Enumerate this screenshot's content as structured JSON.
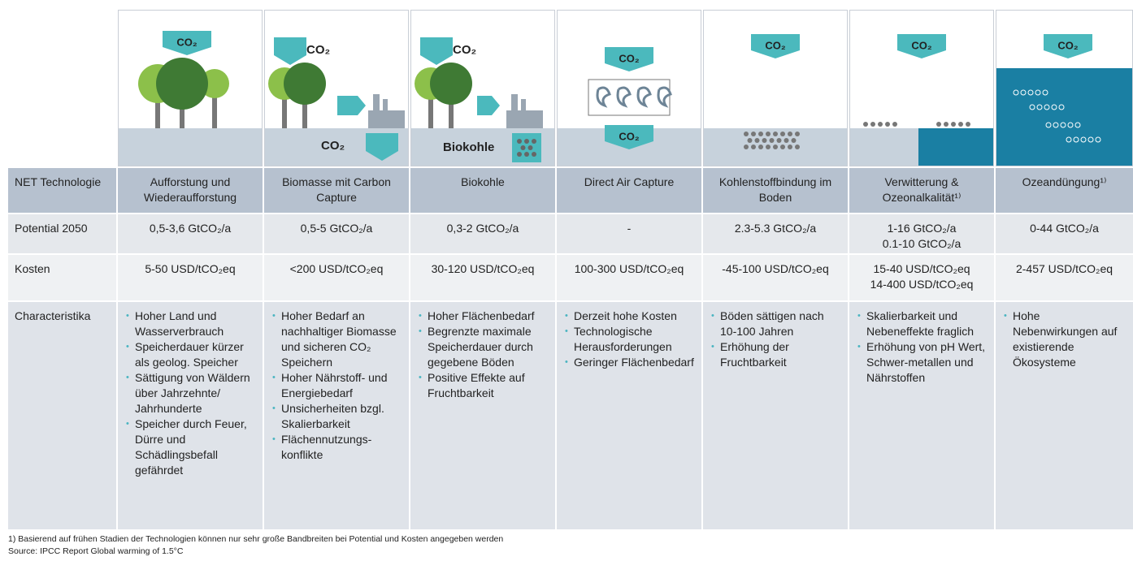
{
  "illustration_labels": {
    "co2": "CO₂",
    "biokohle": "Biokohle"
  },
  "table": {
    "header": [
      "NET Technologie",
      "Aufforstung und Wiederaufforstung",
      "Biomasse mit Carbon Capture",
      "Biokohle",
      "Direct Air Capture",
      "Kohlenstoffbindung im Boden",
      "Verwitterung & Ozeonalkalität¹⁾",
      "Ozeandüngung¹⁾"
    ],
    "rows": [
      [
        "Potential 2050",
        "0,5-3,6 GtCO₂/a",
        "0,5-5 GtCO₂/a",
        "0,3-2 GtCO₂/a",
        "-",
        "2.3-5.3 GtCO₂/a",
        "1-16 GtCO₂/a\n0.1-10 GtCO₂/a",
        "0-44 GtCO₂/a"
      ],
      [
        "Kosten",
        "5-50 USD/tCO₂eq",
        "<200 USD/tCO₂eq",
        "30-120 USD/tCO₂eq",
        "100-300 USD/tCO₂eq",
        "-45-100 USD/tCO₂eq",
        "15-40 USD/tCO₂eq\n14-400 USD/tCO₂eq",
        "2-457 USD/tCO₂eq"
      ],
      [
        "Characteristika",
        [
          "Hoher Land und Wasserverbrauch",
          "Speicherdauer kürzer als geolog. Speicher",
          "Sättigung von Wäldern über Jahrzehnte/ Jahrhunderte",
          "Speicher durch Feuer, Dürre und Schädlingsbefall gefährdet"
        ],
        [
          "Hoher Bedarf an nachhaltiger Biomasse und sicheren CO₂ Speichern",
          "Hoher Nährstoff- und Energiebedarf",
          "Unsicherheiten bzgl. Skalierbarkeit",
          "Flächennutzungs-konflikte"
        ],
        [
          "Hoher Flächenbedarf",
          "Begrenzte maximale Speicherdauer durch gegebene Böden",
          "Positive Effekte auf Fruchtbarkeit"
        ],
        [
          "Derzeit hohe Kosten",
          "Technologische Herausforderungen",
          "Geringer Flächenbedarf"
        ],
        [
          "Böden sättigen nach 10-100 Jahren",
          "Erhöhung der Fruchtbarkeit"
        ],
        [
          "Skalierbarkeit und Nebeneffekte fraglich",
          "Erhöhung von pH Wert, Schwer-metallen und Nährstoffen"
        ],
        [
          "Hohe Nebenwirkungen auf existierende Ökosysteme"
        ]
      ]
    ]
  },
  "footnotes": [
    "1) Basierend auf frühen Stadien der Technologien können nur sehr große Bandbreiten bei Potential und Kosten angegeben werden",
    "Source: IPCC Report Global warming of 1.5°C"
  ]
}
